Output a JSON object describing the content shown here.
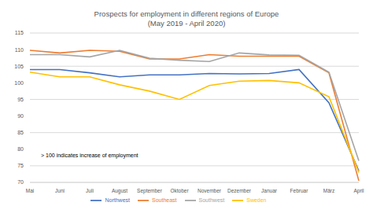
{
  "chart_data": {
    "type": "line",
    "title": "Prospects for employment in different regions of Europe",
    "subtitle": "(May 2019 - April 2020)",
    "annotation": "> 100 indicates increase of employment",
    "categories": [
      "Mai",
      "Juni",
      "Juli",
      "August",
      "September",
      "Oktober",
      "November",
      "Dezember",
      "Januar",
      "Februar",
      "März",
      "April"
    ],
    "series": [
      {
        "name": "Northwest",
        "color": "#4472c4",
        "values": [
          104,
          104,
          103,
          101.8,
          102.4,
          102.4,
          102.8,
          102.7,
          102.8,
          104,
          94,
          73.5
        ]
      },
      {
        "name": "Southeast",
        "color": "#ed7d31",
        "values": [
          109.8,
          109,
          109.8,
          109.5,
          107.2,
          107.2,
          108.5,
          108,
          108,
          108,
          103,
          70.5
        ]
      },
      {
        "name": "Southwest",
        "color": "#a5a5a5",
        "values": [
          108.5,
          108.5,
          107.8,
          109.8,
          107.4,
          106.8,
          106.4,
          109,
          108.4,
          108.3,
          103.2,
          76.5
        ]
      },
      {
        "name": "Sweden",
        "color": "#ffc000",
        "values": [
          103.2,
          101.8,
          101.8,
          99.4,
          97.5,
          95,
          99.2,
          100.5,
          100.7,
          100,
          95.8,
          73
        ]
      }
    ],
    "ylim": [
      70,
      115
    ],
    "yticks": [
      70,
      75,
      80,
      85,
      90,
      95,
      100,
      105,
      110,
      115
    ],
    "grid": true,
    "legend": "bottom"
  }
}
